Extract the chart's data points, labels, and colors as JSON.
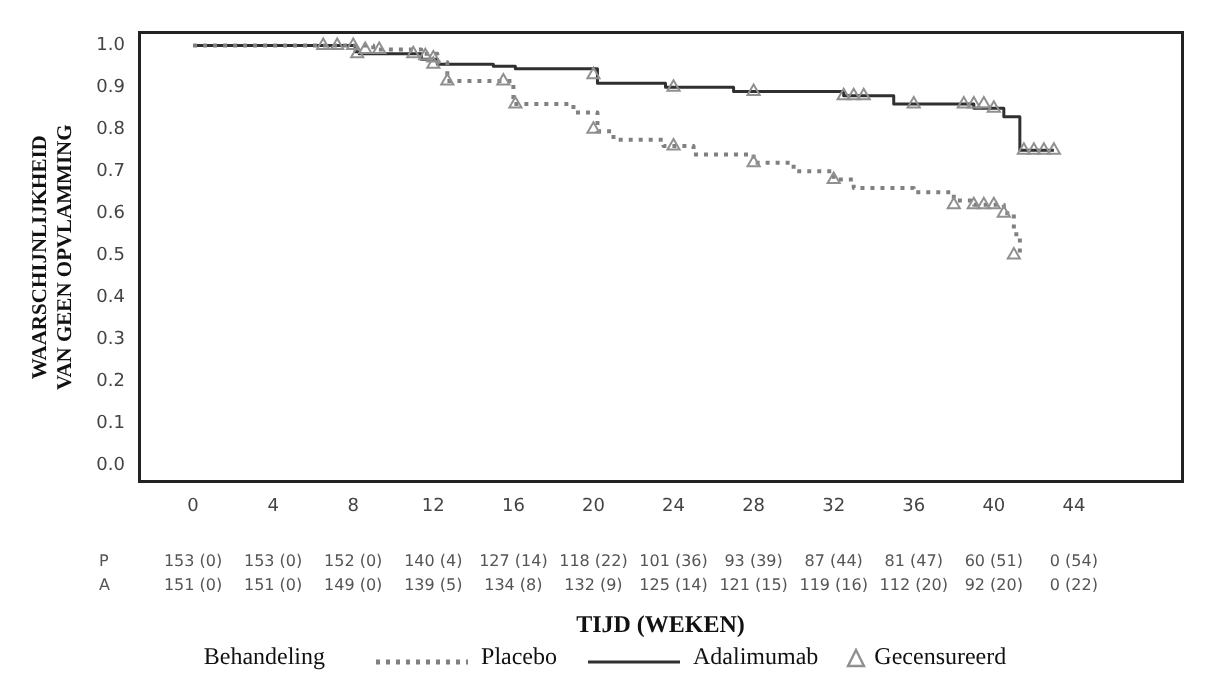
{
  "chart_data": {
    "type": "step",
    "ylabel": "WAARSCHIJNLIJKHEID VAN GEEN OPVLAMMING",
    "xlabel": "TIJD (WEKEN)",
    "legend_title": "Behandeling",
    "legend": "bottom",
    "xlim": [
      -2.7,
      49.4
    ],
    "ylim": [
      -0.04,
      1.03
    ],
    "xticks": [
      0,
      4,
      8,
      12,
      16,
      20,
      24,
      28,
      32,
      36,
      40,
      44
    ],
    "yticks": [
      {
        "value": 0,
        "label": "0.0"
      },
      0.1,
      0.2,
      0.3,
      0.4,
      0.5,
      0.6,
      0.7,
      0.8,
      0.9,
      {
        "value": 1,
        "label": "1.0"
      }
    ],
    "grid": false,
    "series": [
      {
        "name": "Placebo",
        "color": "#808080",
        "line_style": "dotted",
        "marker": "none",
        "x": [
          0,
          9,
          11.4,
          12.2,
          12.7,
          16,
          19,
          20.2,
          21,
          23.5,
          25,
          28,
          30,
          32,
          33,
          36,
          38,
          39,
          40.5,
          41,
          41.3
        ],
        "values": [
          1,
          0.99,
          0.98,
          0.96,
          0.915,
          0.86,
          0.84,
          0.795,
          0.775,
          0.76,
          0.74,
          0.72,
          0.7,
          0.68,
          0.66,
          0.65,
          0.63,
          0.62,
          0.6,
          0.55,
          0.5
        ]
      },
      {
        "name": "Adalimumab",
        "color": "#303030",
        "line_style": "solid",
        "marker": "none",
        "x": [
          0,
          8.1,
          8.3,
          11.4,
          12.2,
          15,
          16.1,
          20.2,
          23.6,
          27,
          32.5,
          35,
          39,
          40.5,
          41.3,
          43
        ],
        "values": [
          1,
          0.985,
          0.98,
          0.967,
          0.955,
          0.95,
          0.944,
          0.91,
          0.9,
          0.89,
          0.88,
          0.86,
          0.85,
          0.83,
          0.75,
          0.75
        ]
      },
      {
        "name": "Gecensureerd",
        "type": "scatter",
        "color": "#909090",
        "marker": "triangle",
        "x": [
          6.5,
          7.2,
          8,
          8.6,
          9.3,
          11,
          11.6,
          12,
          12.7,
          15.5,
          16.1,
          20,
          24,
          28,
          32,
          38,
          39,
          39.5,
          40,
          40.5,
          41,
          8.2,
          12,
          20,
          24,
          28,
          32.5,
          33,
          33.5,
          36,
          38.5,
          39,
          39.5,
          40,
          41.5,
          42,
          42.5,
          43
        ],
        "values": [
          1,
          1,
          1,
          0.99,
          0.99,
          0.98,
          0.975,
          0.955,
          0.915,
          0.915,
          0.86,
          0.8,
          0.76,
          0.72,
          0.68,
          0.62,
          0.62,
          0.62,
          0.62,
          0.6,
          0.5,
          0.98,
          0.97,
          0.93,
          0.9,
          0.89,
          0.88,
          0.88,
          0.88,
          0.86,
          0.86,
          0.86,
          0.86,
          0.85,
          0.75,
          0.75,
          0.75,
          0.75
        ]
      }
    ],
    "annotations": [
      "P",
      "153 (0)",
      "153 (0)",
      "152 (0)",
      "140 (4)",
      "127 (14)",
      "118 (22)",
      "101 (36)",
      "93 (39)",
      "87 (44)",
      "81 (47)",
      "60 (51)",
      "0 (54)",
      "A",
      "151 (0)",
      "151 (0)",
      "149 (0)",
      "139 (5)",
      "134 (8)",
      "132 (9)",
      "125 (14)",
      "121 (15)",
      "119 (16)",
      "112 (20)",
      "92 (20)",
      "0 (22)"
    ]
  }
}
